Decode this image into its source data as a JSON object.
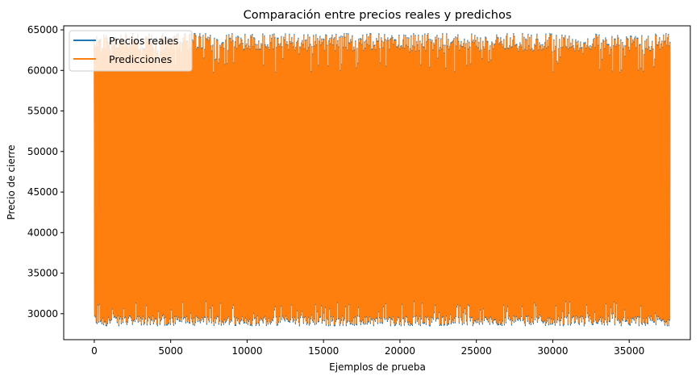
{
  "chart_data": {
    "type": "line",
    "title": "Comparación entre precios reales y predichos",
    "xlabel": "Ejemplos de prueba",
    "ylabel": "Precio de cierre",
    "xlim": [
      -2000,
      39000
    ],
    "ylim": [
      26800,
      65500
    ],
    "x_ticks": [
      0,
      5000,
      10000,
      15000,
      20000,
      25000,
      30000,
      35000
    ],
    "x_tick_labels": [
      "0",
      "5000",
      "10000",
      "15000",
      "20000",
      "25000",
      "30000",
      "35000"
    ],
    "y_ticks": [
      30000,
      35000,
      40000,
      45000,
      50000,
      55000,
      60000,
      65000
    ],
    "y_tick_labels": [
      "30000",
      "35000",
      "40000",
      "45000",
      "50000",
      "55000",
      "60000",
      "65000"
    ],
    "x_range": [
      0,
      37700
    ],
    "value_range": [
      28600,
      64500
    ],
    "grid": false,
    "legend_position": "upper-left",
    "series": [
      {
        "name": "Precios reales",
        "color": "#1f77b4"
      },
      {
        "name": "Predicciones",
        "color": "#ff7f0e"
      }
    ]
  }
}
